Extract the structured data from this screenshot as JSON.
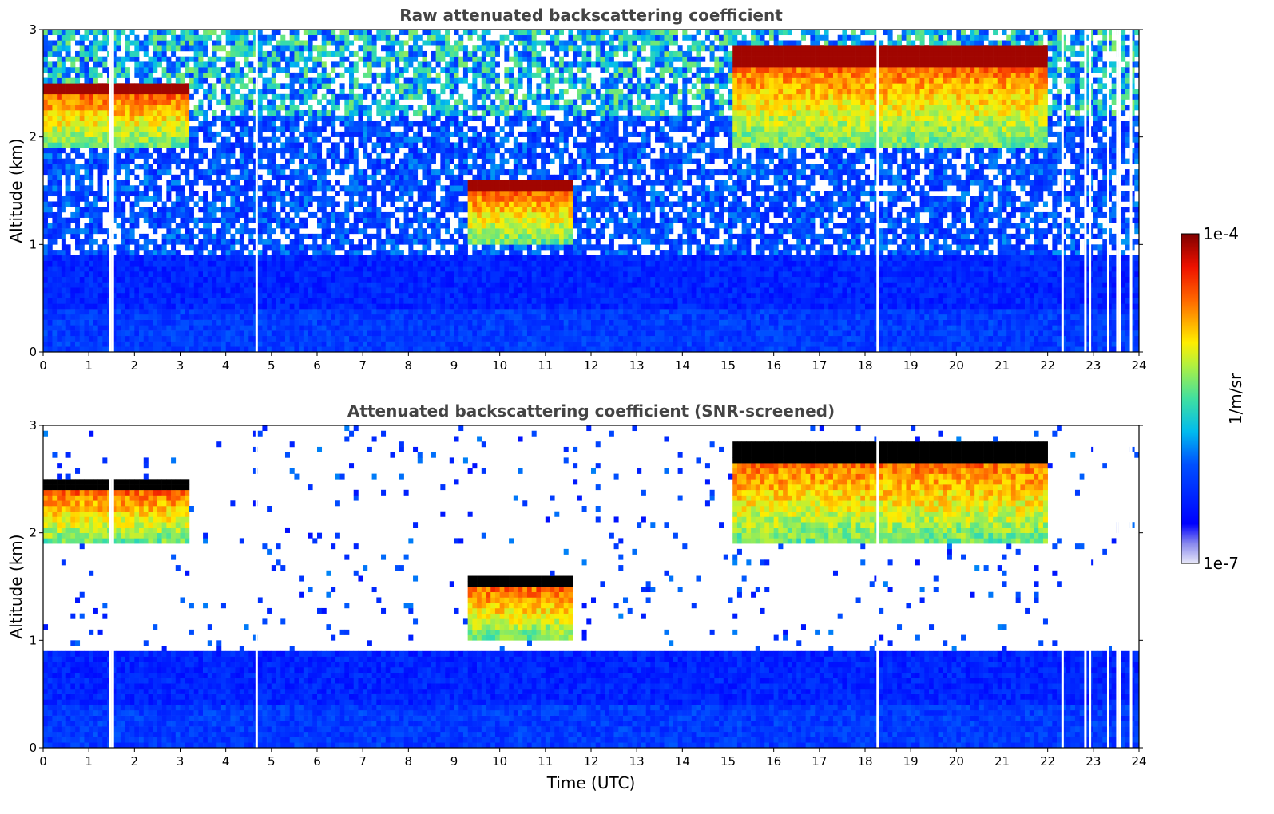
{
  "chart_data": [
    {
      "type": "heatmap",
      "title": "Raw attenuated backscattering coefficient",
      "xlabel": "",
      "ylabel": "Altitude (km)",
      "xlim": [
        0,
        24
      ],
      "ylim": [
        0,
        3
      ],
      "x_ticks": [
        "0",
        "1",
        "2",
        "3",
        "4",
        "5",
        "6",
        "7",
        "8",
        "9",
        "10",
        "11",
        "12",
        "13",
        "14",
        "15",
        "16",
        "17",
        "18",
        "19",
        "20",
        "21",
        "22",
        "23",
        "24"
      ],
      "y_ticks": [
        "0",
        "1",
        "2",
        "3"
      ],
      "screened": false,
      "cloud_layers": [
        {
          "t_start": 0.0,
          "t_end": 3.2,
          "base_km": 1.9,
          "top_km": 2.5
        },
        {
          "t_start": 9.3,
          "t_end": 11.6,
          "base_km": 1.0,
          "top_km": 1.6
        },
        {
          "t_start": 15.1,
          "t_end": 22.0,
          "base_km": 1.9,
          "top_km": 2.85
        }
      ],
      "data_gaps_utc": [
        1.45,
        1.5,
        4.65,
        18.25,
        22.3,
        22.8,
        22.9,
        23.3,
        23.5,
        23.55,
        23.8
      ]
    },
    {
      "type": "heatmap",
      "title": "Attenuated backscattering coefficient (SNR-screened)",
      "xlabel": "Time (UTC)",
      "ylabel": "Altitude (km)",
      "xlim": [
        0,
        24
      ],
      "ylim": [
        0,
        3
      ],
      "x_ticks": [
        "0",
        "1",
        "2",
        "3",
        "4",
        "5",
        "6",
        "7",
        "8",
        "9",
        "10",
        "11",
        "12",
        "13",
        "14",
        "15",
        "16",
        "17",
        "18",
        "19",
        "20",
        "21",
        "22",
        "23",
        "24"
      ],
      "y_ticks": [
        "0",
        "1",
        "2",
        "3"
      ],
      "screened": true,
      "cloud_layers": [
        {
          "t_start": 0.0,
          "t_end": 3.2,
          "base_km": 1.9,
          "top_km": 2.5
        },
        {
          "t_start": 9.3,
          "t_end": 11.6,
          "base_km": 1.0,
          "top_km": 1.6
        },
        {
          "t_start": 15.1,
          "t_end": 22.0,
          "base_km": 1.9,
          "top_km": 2.85
        }
      ],
      "data_gaps_utc": [
        1.45,
        1.5,
        4.65,
        18.25,
        22.3,
        22.8,
        22.9,
        23.3,
        23.5,
        23.55,
        23.8
      ]
    }
  ],
  "colorbar": {
    "label": "1/m/sr",
    "max_label": "1e-4",
    "min_label": "1e-7",
    "scale": "log",
    "colormap": "jet"
  }
}
